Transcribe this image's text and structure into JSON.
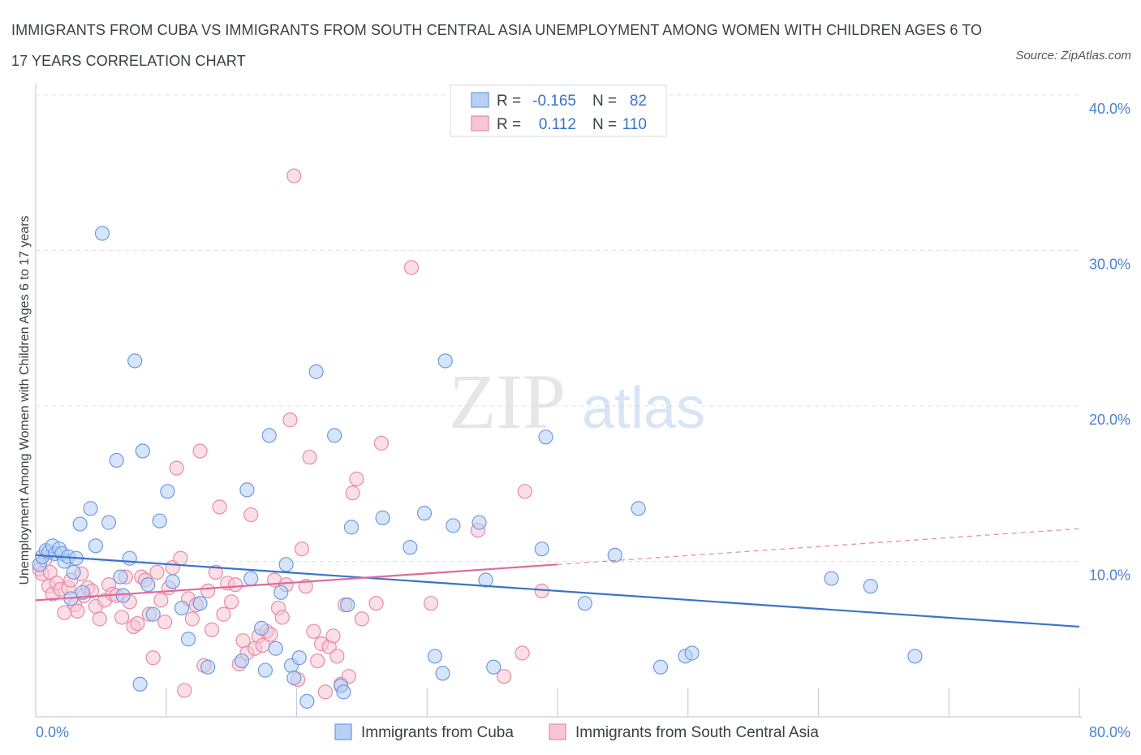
{
  "header": {
    "title": "IMMIGRANTS FROM CUBA VS IMMIGRANTS FROM SOUTH CENTRAL ASIA UNEMPLOYMENT AMONG WOMEN WITH CHILDREN AGES 6 TO 17 YEARS CORRELATION CHART",
    "source": "Source: ZipAtlas.com"
  },
  "watermark": {
    "zip": "ZIP",
    "atlas": "atlas"
  },
  "colors": {
    "cuba_fill": "#b7d0f5",
    "cuba_stroke": "#6d9be0",
    "cuba_line": "#3a73c9",
    "sca_fill": "#f8c5d4",
    "sca_stroke": "#e88aa6",
    "sca_line": "#e0699a",
    "tick_text": "#4a7fd0",
    "grid": "#dfe3e8"
  },
  "stats_legend": {
    "r_label": "R =",
    "n_label": "N =",
    "rows": [
      {
        "series": "cuba",
        "r": "-0.165",
        "n": "82"
      },
      {
        "series": "sca",
        "r": "0.112",
        "n": "110"
      }
    ]
  },
  "chart_data": {
    "type": "scatter",
    "title": "IMMIGRANTS FROM CUBA VS IMMIGRANTS FROM SOUTH CENTRAL ASIA UNEMPLOYMENT AMONG WOMEN WITH CHILDREN AGES 6 TO 17 YEARS CORRELATION CHART",
    "xlabel": "",
    "ylabel": "Unemployment Among Women with Children Ages 6 to 17 years",
    "xlim": [
      0,
      80
    ],
    "ylim": [
      0,
      40
    ],
    "x_tick_labels": [
      "0.0%",
      "80.0%"
    ],
    "y_ticks": [
      10,
      20,
      30,
      40
    ],
    "y_tick_labels": [
      "10.0%",
      "20.0%",
      "30.0%",
      "40.0%"
    ],
    "grid": true,
    "legend": "bottom-center",
    "series": [
      {
        "name": "Immigrants from Cuba",
        "r": -0.165,
        "n": 82,
        "trend": {
          "x": [
            0,
            80
          ],
          "y": [
            10.4,
            5.8
          ]
        },
        "points": [
          [
            0.3,
            9.8
          ],
          [
            0.5,
            10.3
          ],
          [
            0.8,
            10.7
          ],
          [
            1.0,
            10.6
          ],
          [
            1.3,
            11.0
          ],
          [
            1.5,
            10.5
          ],
          [
            1.8,
            10.8
          ],
          [
            2.0,
            10.5
          ],
          [
            2.2,
            10.0
          ],
          [
            2.5,
            10.3
          ],
          [
            2.7,
            7.6
          ],
          [
            2.9,
            9.3
          ],
          [
            3.1,
            10.2
          ],
          [
            3.4,
            12.4
          ],
          [
            3.6,
            8.0
          ],
          [
            4.2,
            13.4
          ],
          [
            4.6,
            11.0
          ],
          [
            5.1,
            31.1
          ],
          [
            5.6,
            12.5
          ],
          [
            6.2,
            16.5
          ],
          [
            6.5,
            9.0
          ],
          [
            6.7,
            7.8
          ],
          [
            7.2,
            10.2
          ],
          [
            7.6,
            22.9
          ],
          [
            8.0,
            2.1
          ],
          [
            8.2,
            17.1
          ],
          [
            8.6,
            8.5
          ],
          [
            9.0,
            6.6
          ],
          [
            9.5,
            12.6
          ],
          [
            10.1,
            14.5
          ],
          [
            10.5,
            8.7
          ],
          [
            11.2,
            7.0
          ],
          [
            11.7,
            5.0
          ],
          [
            12.6,
            7.3
          ],
          [
            13.2,
            3.2
          ],
          [
            15.8,
            3.6
          ],
          [
            16.2,
            14.6
          ],
          [
            16.5,
            8.9
          ],
          [
            17.3,
            5.7
          ],
          [
            17.6,
            3.0
          ],
          [
            17.9,
            18.1
          ],
          [
            18.4,
            4.4
          ],
          [
            18.8,
            8.0
          ],
          [
            19.2,
            9.8
          ],
          [
            19.6,
            3.3
          ],
          [
            19.8,
            2.5
          ],
          [
            20.2,
            3.8
          ],
          [
            20.8,
            1.0
          ],
          [
            21.5,
            22.2
          ],
          [
            22.9,
            18.1
          ],
          [
            23.4,
            2.0
          ],
          [
            23.6,
            1.6
          ],
          [
            23.9,
            7.2
          ],
          [
            24.2,
            12.2
          ],
          [
            26.6,
            12.8
          ],
          [
            28.7,
            10.9
          ],
          [
            29.8,
            13.1
          ],
          [
            30.6,
            3.9
          ],
          [
            31.2,
            2.8
          ],
          [
            31.4,
            22.9
          ],
          [
            32.0,
            12.3
          ],
          [
            34.0,
            12.5
          ],
          [
            34.5,
            8.8
          ],
          [
            35.1,
            3.2
          ],
          [
            38.8,
            10.8
          ],
          [
            39.1,
            18.0
          ],
          [
            42.1,
            7.3
          ],
          [
            44.4,
            10.4
          ],
          [
            46.2,
            13.4
          ],
          [
            47.9,
            3.2
          ],
          [
            49.8,
            3.9
          ],
          [
            50.3,
            4.1
          ],
          [
            61.0,
            8.9
          ],
          [
            64.0,
            8.4
          ],
          [
            67.4,
            3.9
          ]
        ]
      },
      {
        "name": "Immigrants from South Central Asia",
        "r": 0.112,
        "n": 110,
        "trend": {
          "x": [
            0,
            40
          ],
          "y": [
            7.5,
            9.8
          ]
        },
        "trend_dashed": {
          "x": [
            40,
            80
          ],
          "y": [
            9.8,
            12.1
          ]
        },
        "points": [
          [
            0.3,
            9.5
          ],
          [
            0.5,
            9.2
          ],
          [
            0.7,
            10.1
          ],
          [
            1.0,
            8.4
          ],
          [
            1.1,
            9.3
          ],
          [
            1.3,
            7.9
          ],
          [
            1.6,
            8.6
          ],
          [
            1.9,
            8.2
          ],
          [
            2.2,
            6.7
          ],
          [
            2.5,
            8.3
          ],
          [
            2.7,
            8.8
          ],
          [
            3.0,
            7.2
          ],
          [
            3.2,
            6.8
          ],
          [
            3.5,
            9.2
          ],
          [
            3.7,
            7.8
          ],
          [
            4.0,
            8.3
          ],
          [
            4.3,
            8.1
          ],
          [
            4.6,
            7.1
          ],
          [
            4.9,
            6.3
          ],
          [
            5.3,
            7.5
          ],
          [
            5.6,
            8.5
          ],
          [
            5.9,
            7.9
          ],
          [
            6.2,
            7.8
          ],
          [
            6.6,
            6.4
          ],
          [
            6.9,
            9.0
          ],
          [
            7.2,
            7.4
          ],
          [
            7.5,
            5.8
          ],
          [
            7.8,
            6.0
          ],
          [
            8.1,
            9.0
          ],
          [
            8.4,
            8.8
          ],
          [
            8.7,
            6.6
          ],
          [
            9.0,
            3.8
          ],
          [
            9.3,
            9.3
          ],
          [
            9.6,
            7.5
          ],
          [
            9.9,
            6.1
          ],
          [
            10.2,
            8.3
          ],
          [
            10.5,
            9.6
          ],
          [
            10.8,
            16.0
          ],
          [
            11.1,
            10.2
          ],
          [
            11.4,
            1.7
          ],
          [
            11.7,
            7.6
          ],
          [
            12.0,
            6.3
          ],
          [
            12.3,
            7.2
          ],
          [
            12.6,
            17.1
          ],
          [
            12.9,
            3.3
          ],
          [
            13.2,
            8.1
          ],
          [
            13.5,
            5.6
          ],
          [
            13.8,
            9.3
          ],
          [
            14.1,
            13.5
          ],
          [
            14.4,
            6.6
          ],
          [
            14.7,
            8.6
          ],
          [
            15.0,
            7.4
          ],
          [
            15.3,
            8.5
          ],
          [
            15.6,
            3.4
          ],
          [
            15.9,
            4.9
          ],
          [
            16.2,
            4.1
          ],
          [
            16.5,
            13.0
          ],
          [
            16.8,
            4.4
          ],
          [
            17.1,
            5.2
          ],
          [
            17.4,
            4.6
          ],
          [
            17.7,
            5.5
          ],
          [
            18.0,
            5.3
          ],
          [
            18.3,
            8.8
          ],
          [
            18.6,
            7.0
          ],
          [
            18.9,
            6.4
          ],
          [
            19.2,
            8.5
          ],
          [
            19.5,
            19.1
          ],
          [
            19.8,
            34.8
          ],
          [
            20.1,
            2.4
          ],
          [
            20.4,
            10.8
          ],
          [
            20.7,
            8.4
          ],
          [
            21.0,
            16.7
          ],
          [
            21.3,
            5.5
          ],
          [
            21.6,
            3.6
          ],
          [
            21.9,
            4.7
          ],
          [
            22.2,
            1.6
          ],
          [
            22.5,
            4.5
          ],
          [
            22.8,
            5.2
          ],
          [
            23.1,
            3.9
          ],
          [
            23.4,
            2.1
          ],
          [
            23.7,
            7.2
          ],
          [
            24.0,
            2.6
          ],
          [
            24.3,
            14.4
          ],
          [
            24.6,
            15.3
          ],
          [
            25.0,
            6.3
          ],
          [
            26.1,
            7.3
          ],
          [
            26.5,
            17.6
          ],
          [
            28.8,
            28.9
          ],
          [
            30.3,
            7.3
          ],
          [
            33.9,
            12.0
          ],
          [
            35.9,
            2.6
          ],
          [
            37.3,
            4.1
          ],
          [
            37.5,
            14.5
          ],
          [
            38.8,
            8.1
          ]
        ]
      }
    ]
  },
  "bottom_legend": [
    {
      "series": "cuba",
      "label": "Immigrants from Cuba"
    },
    {
      "series": "sca",
      "label": "Immigrants from South Central Asia"
    }
  ]
}
